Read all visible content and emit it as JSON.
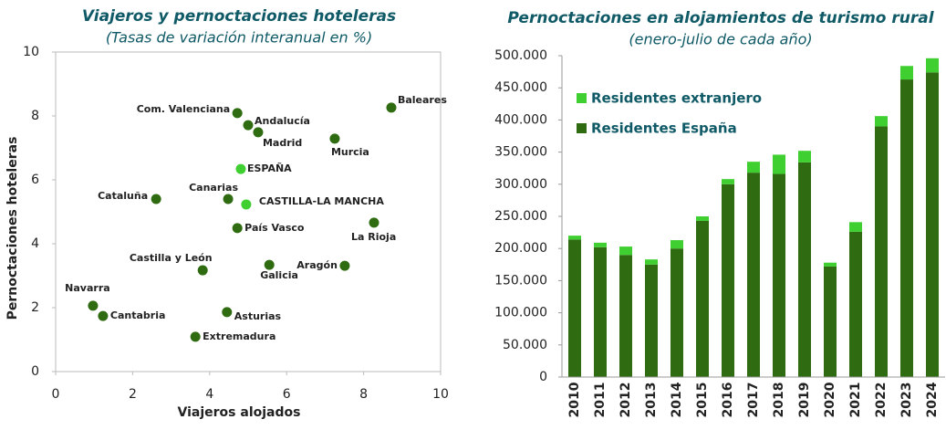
{
  "chart_data": [
    {
      "type": "scatter",
      "title": "Viajeros y pernoctaciones hoteleras",
      "subtitle": "(Tasas de variación interanual en %)",
      "xlabel": "Viajeros alojados",
      "ylabel": "Pernoctaciones hoteleras",
      "xlim": [
        0,
        10
      ],
      "xticks": [
        0,
        2,
        4,
        6,
        8,
        10
      ],
      "ylim": [
        0,
        10
      ],
      "yticks": [
        0,
        2,
        4,
        6,
        8,
        10
      ],
      "points": [
        {
          "label": "Com. Valenciana",
          "x": 4.72,
          "y": 8.09,
          "color": "#2f6b10"
        },
        {
          "label": "Andalucía",
          "x": 5.0,
          "y": 7.71,
          "color": "#2f6b10"
        },
        {
          "label": "Madrid",
          "x": 5.26,
          "y": 7.49,
          "color": "#2f6b10"
        },
        {
          "label": "Murcia",
          "x": 7.25,
          "y": 7.29,
          "color": "#2f6b10"
        },
        {
          "label": "Baleares",
          "x": 8.72,
          "y": 8.26,
          "color": "#2f6b10"
        },
        {
          "label": "ESPAÑA",
          "x": 4.81,
          "y": 6.34,
          "color": "#3fcf30"
        },
        {
          "label": "Cataluña",
          "x": 2.61,
          "y": 5.4,
          "color": "#2f6b10"
        },
        {
          "label": "Canarias",
          "x": 4.48,
          "y": 5.4,
          "color": "#2f6b10"
        },
        {
          "label": "CASTILLA-LA MANCHA",
          "x": 4.95,
          "y": 5.23,
          "color": "#3fcf30"
        },
        {
          "label": "País Vasco",
          "x": 4.72,
          "y": 4.49,
          "color": "#2f6b10"
        },
        {
          "label": "La Rioja",
          "x": 8.27,
          "y": 4.66,
          "color": "#2f6b10"
        },
        {
          "label": "Castilla y León",
          "x": 3.82,
          "y": 3.17,
          "color": "#2f6b10"
        },
        {
          "label": "Galicia",
          "x": 5.55,
          "y": 3.34,
          "color": "#2f6b10"
        },
        {
          "label": "Aragón",
          "x": 7.51,
          "y": 3.31,
          "color": "#2f6b10"
        },
        {
          "label": "Navarra",
          "x": 0.97,
          "y": 2.06,
          "color": "#2f6b10"
        },
        {
          "label": "Cantabria",
          "x": 1.23,
          "y": 1.74,
          "color": "#2f6b10"
        },
        {
          "label": "Asturias",
          "x": 4.45,
          "y": 1.86,
          "color": "#2f6b10"
        },
        {
          "label": "Extremadura",
          "x": 3.63,
          "y": 1.09,
          "color": "#2f6b10"
        }
      ]
    },
    {
      "type": "stacked_bar",
      "title": "Pernoctaciones en alojamientos de turismo rural",
      "subtitle": "(enero-julio de cada año)",
      "categories": [
        "2010",
        "2011",
        "2012",
        "2013",
        "2014",
        "2015",
        "2016",
        "2017",
        "2018",
        "2019",
        "2020",
        "2021",
        "2022",
        "2023",
        "2024"
      ],
      "series": [
        {
          "name": "Residentes España",
          "color": "#2f6b10",
          "values": [
            214000,
            202000,
            190000,
            175000,
            200000,
            243000,
            300000,
            318000,
            316000,
            334000,
            172000,
            226000,
            390000,
            463000,
            474000
          ]
        },
        {
          "name": "Residentes extranjero",
          "color": "#3fcf30",
          "values": [
            6000,
            7000,
            13000,
            8000,
            13000,
            7000,
            8000,
            17000,
            30000,
            18000,
            6000,
            15000,
            16000,
            21000,
            22000
          ]
        }
      ],
      "ylim": [
        0,
        500000
      ],
      "yticks": [
        0,
        {
          "value": 50000,
          "label": "50.000"
        },
        {
          "value": 100000,
          "label": "100.000"
        },
        {
          "value": 150000,
          "label": "150.000"
        },
        {
          "value": 200000,
          "label": "200.000"
        },
        {
          "value": 250000,
          "label": "250.000"
        },
        {
          "value": 300000,
          "label": "300.000"
        },
        {
          "value": 350000,
          "label": "350.000"
        },
        {
          "value": 400000,
          "label": "400.000"
        },
        {
          "value": 450000,
          "label": "450.000"
        },
        {
          "value": 500000,
          "label": "500.000"
        }
      ],
      "legend": "upper left"
    }
  ]
}
